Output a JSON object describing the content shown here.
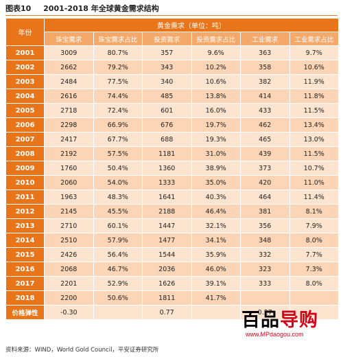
{
  "title": {
    "fig_no": "图表10",
    "text": "2001-2018 年全球黄金需求结构"
  },
  "header": {
    "year_label": "年份",
    "group_label": "黄金需求（单位：吨）",
    "columns": [
      "珠宝需求",
      "珠宝需求占比",
      "投资需求",
      "投资需求占比",
      "工业需求",
      "工业需求占比"
    ]
  },
  "rows": [
    {
      "year": "2001",
      "cells": [
        "3009",
        "80.7%",
        "357",
        "9.6%",
        "363",
        "9.7%"
      ]
    },
    {
      "year": "2002",
      "cells": [
        "2662",
        "79.2%",
        "343",
        "10.2%",
        "358",
        "10.6%"
      ]
    },
    {
      "year": "2003",
      "cells": [
        "2484",
        "77.5%",
        "340",
        "10.6%",
        "382",
        "11.9%"
      ]
    },
    {
      "year": "2004",
      "cells": [
        "2616",
        "74.4%",
        "485",
        "13.8%",
        "414",
        "11.8%"
      ]
    },
    {
      "year": "2005",
      "cells": [
        "2718",
        "72.4%",
        "601",
        "16.0%",
        "433",
        "11.5%"
      ]
    },
    {
      "year": "2006",
      "cells": [
        "2298",
        "66.9%",
        "676",
        "19.7%",
        "462",
        "13.4%"
      ]
    },
    {
      "year": "2007",
      "cells": [
        "2417",
        "67.7%",
        "688",
        "19.3%",
        "465",
        "13.0%"
      ]
    },
    {
      "year": "2008",
      "cells": [
        "2192",
        "57.5%",
        "1181",
        "31.0%",
        "439",
        "11.5%"
      ]
    },
    {
      "year": "2009",
      "cells": [
        "1760",
        "50.4%",
        "1360",
        "38.9%",
        "373",
        "10.7%"
      ]
    },
    {
      "year": "2010",
      "cells": [
        "2060",
        "54.0%",
        "1333",
        "35.0%",
        "420",
        "11.0%"
      ]
    },
    {
      "year": "2011",
      "cells": [
        "1963",
        "48.3%",
        "1641",
        "40.3%",
        "464",
        "11.4%"
      ]
    },
    {
      "year": "2012",
      "cells": [
        "2145",
        "45.5%",
        "2188",
        "46.4%",
        "381",
        "8.1%"
      ]
    },
    {
      "year": "2013",
      "cells": [
        "2710",
        "60.1%",
        "1447",
        "32.1%",
        "356",
        "7.9%"
      ]
    },
    {
      "year": "2014",
      "cells": [
        "2510",
        "57.9%",
        "1477",
        "34.1%",
        "348",
        "8.0%"
      ]
    },
    {
      "year": "2015",
      "cells": [
        "2426",
        "56.4%",
        "1544",
        "35.9%",
        "332",
        "7.7%"
      ]
    },
    {
      "year": "2016",
      "cells": [
        "2068",
        "46.7%",
        "2036",
        "46.0%",
        "323",
        "7.3%"
      ]
    },
    {
      "year": "2017",
      "cells": [
        "2201",
        "52.9%",
        "1626",
        "39.1%",
        "333",
        "8.0%"
      ]
    },
    {
      "year": "2018",
      "cells": [
        "2200",
        "50.6%",
        "1811",
        "41.7%",
        "",
        ""
      ]
    }
  ],
  "elasticity": {
    "label": "价格弹性",
    "cells": [
      "-0.30",
      "",
      "0.77",
      "",
      "0.27",
      ""
    ]
  },
  "source": "资料来源：WIND，World Gold Council，平安证券研究所",
  "watermark": {
    "logo_black": "百品",
    "logo_red": "导购",
    "url": "www.MPdaogou.com"
  }
}
